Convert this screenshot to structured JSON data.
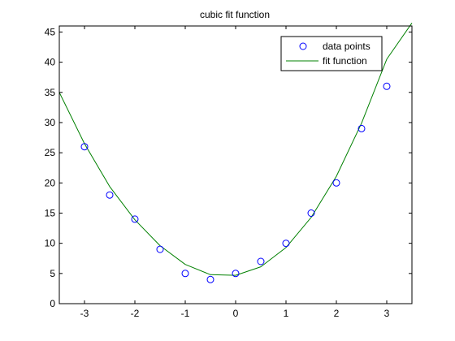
{
  "chart_data": {
    "type": "scatter",
    "title": "cubic fit function",
    "xlabel": "",
    "ylabel": "",
    "xlim": [
      -3.5,
      3.5
    ],
    "ylim": [
      0,
      46
    ],
    "xticks": [
      "-3",
      "-2",
      "-1",
      "0",
      "1",
      "2",
      "3"
    ],
    "yticks": [
      "0",
      "5",
      "10",
      "15",
      "20",
      "25",
      "30",
      "35",
      "40",
      "45"
    ],
    "grid": false,
    "legend_position": "top-right",
    "series": [
      {
        "name": "data points",
        "marker": "circle",
        "color": "#0000ff",
        "x": [
          -3,
          -2.5,
          -2,
          -1.5,
          -1,
          -0.5,
          0,
          0.5,
          1,
          1.5,
          2,
          2.5,
          3
        ],
        "y": [
          26,
          18,
          14,
          9,
          5,
          4,
          5,
          7,
          10,
          15,
          20,
          29,
          36
        ]
      },
      {
        "name": "fit function",
        "line": "solid",
        "color": "#008000",
        "x": [
          -3.5,
          -3,
          -2.5,
          -2,
          -1.5,
          -1,
          -0.5,
          0,
          0.5,
          1,
          1.5,
          2,
          2.5,
          3,
          3.5
        ],
        "y": [
          35,
          26.5,
          19.4,
          13.9,
          9.6,
          6.5,
          4.8,
          4.7,
          6.1,
          9.3,
          14.3,
          21.1,
          29.9,
          40.5,
          46.5
        ]
      }
    ]
  }
}
